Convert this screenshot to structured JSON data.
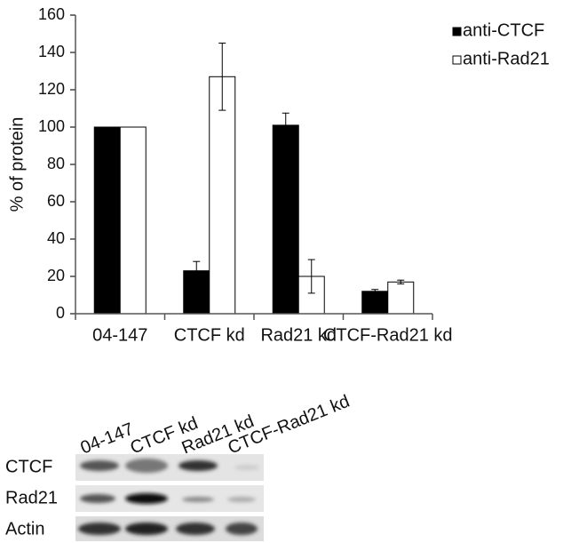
{
  "chart_data": {
    "type": "bar",
    "y_label": "% of protein",
    "categories": [
      "04-147",
      "CTCF kd",
      "Rad21 kd",
      "CTCF-Rad21 kd"
    ],
    "series": [
      {
        "name": "anti-CTCF",
        "color": "#000000",
        "values": [
          100,
          23,
          101,
          12
        ],
        "errors": [
          0,
          5,
          6.5,
          1
        ]
      },
      {
        "name": "anti-Rad21",
        "color": "#ffffff",
        "values": [
          100,
          127,
          20,
          17
        ],
        "errors": [
          0,
          18,
          9,
          1
        ]
      }
    ],
    "ylim": [
      0,
      160
    ],
    "yticks": [
      0,
      20,
      40,
      60,
      80,
      100,
      120,
      140,
      160
    ],
    "grid": false,
    "legend": "right"
  },
  "blot": {
    "lanes": [
      "04-147",
      "CTCF kd",
      "Rad21 kd",
      "CTCF-Rad21 kd"
    ],
    "rows": [
      "CTCF",
      "Rad21",
      "Actin"
    ]
  }
}
